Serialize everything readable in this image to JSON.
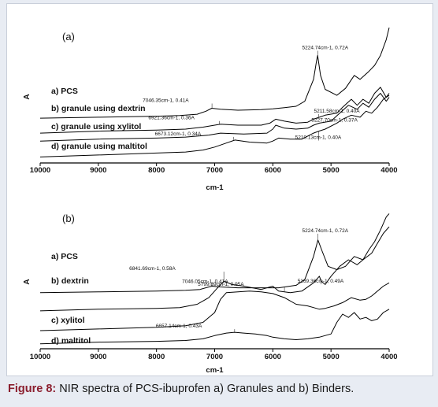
{
  "caption": {
    "label": "Figure 8:",
    "text": "NIR spectra of PCS-ibuprofen a) Granules and b) Binders."
  },
  "colors": {
    "line": "#000000",
    "caption_label": "#8b1e2e",
    "frame_bg": "#e8ecf3"
  },
  "chart_data": [
    {
      "type": "line",
      "panel": "(a)",
      "xlabel": "cm-1",
      "ylabel": "A",
      "xlim": [
        10000,
        4000
      ],
      "x_reversed": true,
      "xticks": [
        10000,
        9000,
        8000,
        7000,
        6000,
        5000,
        4000
      ],
      "series": [
        {
          "name": "a) PCS",
          "x": [
            10000,
            9000,
            8000,
            7600,
            7300,
            7150,
            7050,
            6900,
            6600,
            6200,
            6000,
            5800,
            5600,
            5450,
            5300,
            5250,
            5230,
            5180,
            5100,
            4900,
            4750,
            4600,
            4500,
            4350,
            4250,
            4150,
            4050,
            4000
          ],
          "y": [
            0.405,
            0.41,
            0.415,
            0.418,
            0.425,
            0.44,
            0.455,
            0.45,
            0.445,
            0.448,
            0.452,
            0.458,
            0.465,
            0.49,
            0.6,
            0.69,
            0.72,
            0.62,
            0.55,
            0.52,
            0.555,
            0.62,
            0.6,
            0.64,
            0.67,
            0.72,
            0.8,
            0.86
          ]
        },
        {
          "name": "b) granule using dextrin",
          "x": [
            10000,
            9000,
            8000,
            7500,
            7200,
            7000,
            6900,
            6600,
            6200,
            6050,
            5950,
            5800,
            5600,
            5400,
            5300,
            5200,
            5100,
            4900,
            4800,
            4650,
            4550,
            4450,
            4350,
            4250,
            4150,
            4050,
            4000
          ],
          "y": [
            0.33,
            0.34,
            0.345,
            0.35,
            0.36,
            0.37,
            0.375,
            0.37,
            0.37,
            0.38,
            0.4,
            0.39,
            0.38,
            0.385,
            0.4,
            0.41,
            0.42,
            0.43,
            0.46,
            0.5,
            0.47,
            0.5,
            0.48,
            0.53,
            0.56,
            0.51,
            0.53
          ]
        },
        {
          "name": "c) granule using xylitol",
          "x": [
            10000,
            9000,
            8000,
            7500,
            7300,
            7100,
            6900,
            6500,
            6100,
            6000,
            5950,
            5800,
            5600,
            5400,
            5300,
            5200,
            5000,
            4850,
            4700,
            4550,
            4450,
            4350,
            4250,
            4150,
            4050,
            4000
          ],
          "y": [
            0.29,
            0.3,
            0.305,
            0.31,
            0.315,
            0.32,
            0.33,
            0.325,
            0.33,
            0.35,
            0.37,
            0.355,
            0.35,
            0.355,
            0.37,
            0.38,
            0.39,
            0.43,
            0.47,
            0.45,
            0.48,
            0.46,
            0.5,
            0.53,
            0.49,
            0.51
          ]
        },
        {
          "name": "d) granule using maltitol",
          "x": [
            10000,
            9000,
            8000,
            7500,
            7200,
            7000,
            6800,
            6650,
            6400,
            6100,
            6000,
            5900,
            5700,
            5500,
            5300,
            5210,
            5100,
            4900,
            4800,
            4650,
            4500,
            4400,
            4300,
            4200,
            4100,
            4000
          ],
          "y": [
            0.21,
            0.22,
            0.23,
            0.235,
            0.245,
            0.26,
            0.28,
            0.295,
            0.285,
            0.28,
            0.29,
            0.305,
            0.3,
            0.3,
            0.33,
            0.34,
            0.35,
            0.38,
            0.4,
            0.42,
            0.41,
            0.44,
            0.43,
            0.46,
            0.5,
            0.52
          ]
        }
      ],
      "annotations": [
        {
          "text": "5224.74cm-1, 0.72A",
          "x": 5225,
          "y": 0.72
        },
        {
          "text": "7046.35cm-1, 0.41A",
          "x": 7046,
          "y": 0.455
        },
        {
          "text": "6921.36cm-1, 0.36A",
          "x": 6921,
          "y": 0.375
        },
        {
          "text": "5211.58cm-1, 0.40A",
          "x": 5212,
          "y": 0.41
        },
        {
          "text": "5227.70cm-1, 0.37A",
          "x": 5228,
          "y": 0.38
        },
        {
          "text": "5210.13cm-1, 0.40A",
          "x": 5210,
          "y": 0.34
        },
        {
          "text": "6673.12cm-1, 0.34A",
          "x": 6673,
          "y": 0.295
        }
      ]
    },
    {
      "type": "line",
      "panel": "(b)",
      "xlabel": "cm-1",
      "ylabel": "A",
      "xlim": [
        10000,
        4000
      ],
      "x_reversed": true,
      "xticks": [
        10000,
        9000,
        8000,
        7000,
        6000,
        5000,
        4000
      ],
      "series": [
        {
          "name": "a) PCS",
          "x": [
            10000,
            9000,
            8000,
            7500,
            7250,
            7100,
            7046,
            6900,
            6600,
            6200,
            5900,
            5600,
            5450,
            5300,
            5225,
            5150,
            5050,
            4900,
            4750,
            4600,
            4450,
            4350,
            4250,
            4150,
            4050,
            4000
          ],
          "y": [
            0.4,
            0.405,
            0.41,
            0.415,
            0.42,
            0.435,
            0.44,
            0.435,
            0.43,
            0.43,
            0.43,
            0.445,
            0.48,
            0.62,
            0.72,
            0.65,
            0.56,
            0.54,
            0.56,
            0.62,
            0.6,
            0.66,
            0.71,
            0.78,
            0.86,
            0.88
          ]
        },
        {
          "name": "b) dextrin",
          "x": [
            10000,
            9000,
            8000,
            7600,
            7300,
            7100,
            6950,
            6842,
            6700,
            6500,
            6200,
            6000,
            5900,
            5700,
            5500,
            5300,
            5200,
            5169,
            5100,
            5000,
            4850,
            4700,
            4550,
            4450,
            4300,
            4200,
            4100,
            4000
          ],
          "y": [
            0.29,
            0.3,
            0.305,
            0.31,
            0.33,
            0.37,
            0.43,
            0.47,
            0.45,
            0.44,
            0.42,
            0.44,
            0.41,
            0.4,
            0.41,
            0.46,
            0.5,
            0.47,
            0.45,
            0.5,
            0.56,
            0.6,
            0.57,
            0.6,
            0.64,
            0.7,
            0.76,
            0.8
          ]
        },
        {
          "name": "c) xylitol",
          "x": [
            10000,
            9000,
            8000,
            7500,
            7200,
            7000,
            6900,
            6800,
            6600,
            6400,
            6200,
            6000,
            5800,
            5600,
            5400,
            5300,
            5200,
            5100,
            4950,
            4800,
            4650,
            4500,
            4400,
            4300,
            4200,
            4100,
            4000
          ],
          "y": [
            0.17,
            0.18,
            0.19,
            0.2,
            0.22,
            0.28,
            0.36,
            0.4,
            0.405,
            0.41,
            0.405,
            0.395,
            0.37,
            0.33,
            0.32,
            0.31,
            0.3,
            0.305,
            0.32,
            0.34,
            0.37,
            0.355,
            0.36,
            0.38,
            0.41,
            0.44,
            0.46
          ]
        },
        {
          "name": "d) maltitol",
          "x": [
            10000,
            9000,
            8000,
            7500,
            7200,
            7000,
            6800,
            6657,
            6500,
            6300,
            6100,
            6000,
            5800,
            5600,
            5400,
            5200,
            5000,
            4900,
            4800,
            4700,
            4600,
            4500,
            4400,
            4300,
            4200,
            4100,
            4000
          ],
          "y": [
            0.09,
            0.1,
            0.105,
            0.11,
            0.12,
            0.14,
            0.155,
            0.16,
            0.155,
            0.15,
            0.14,
            0.13,
            0.12,
            0.115,
            0.12,
            0.13,
            0.15,
            0.22,
            0.27,
            0.25,
            0.28,
            0.24,
            0.25,
            0.23,
            0.24,
            0.28,
            0.3
          ]
        }
      ],
      "annotations": [
        {
          "text": "5224.74cm-1, 0.72A",
          "x": 5225,
          "y": 0.72
        },
        {
          "text": "7046.05cm-1, 0.41A",
          "x": 7046,
          "y": 0.44
        },
        {
          "text": "5169.36cm-1, 0.49A",
          "x": 5169,
          "y": 0.47
        },
        {
          "text": "6841.69cm-1, 0.58A",
          "x": 6842,
          "y": 0.47
        },
        {
          "text": "5799.89cm-1, 0.95A",
          "x": 5800,
          "y": 0.405
        },
        {
          "text": "6657.14cm-1, 0.43A",
          "x": 6657,
          "y": 0.16
        }
      ]
    }
  ]
}
